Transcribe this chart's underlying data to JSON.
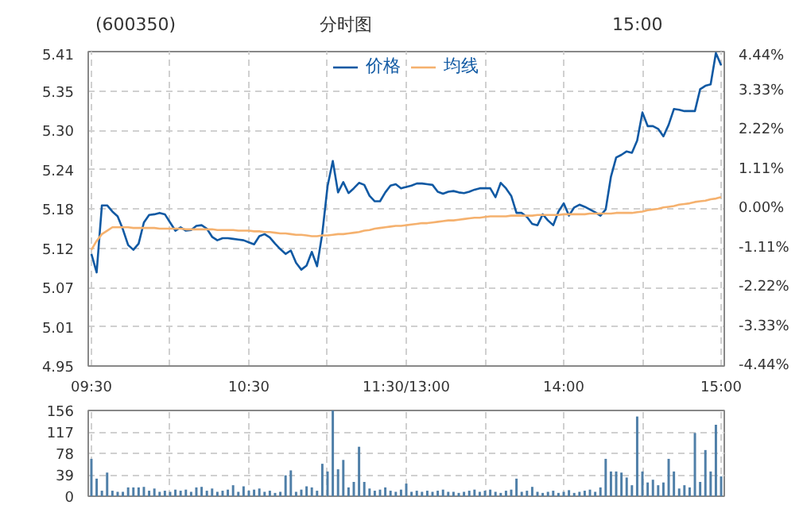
{
  "chart_data": [
    {
      "type": "line",
      "title": "(600350)",
      "subtitle": "分时图",
      "annotations": [
        "15:00"
      ],
      "categories": [
        "09:30",
        null,
        null,
        null,
        null,
        null,
        null,
        null,
        null,
        null,
        null,
        null,
        null,
        null,
        null,
        null,
        null,
        null,
        null,
        null,
        null,
        null,
        null,
        null,
        null,
        null,
        null,
        null,
        null,
        null,
        "10:30",
        null,
        null,
        null,
        null,
        null,
        null,
        null,
        null,
        null,
        null,
        null,
        null,
        null,
        null,
        null,
        null,
        null,
        null,
        null,
        null,
        null,
        null,
        null,
        null,
        null,
        null,
        null,
        null,
        null,
        "11:30/13:00",
        null,
        null,
        null,
        null,
        null,
        null,
        null,
        null,
        null,
        null,
        null,
        null,
        null,
        null,
        null,
        null,
        null,
        null,
        null,
        null,
        null,
        null,
        null,
        null,
        null,
        null,
        null,
        null,
        null,
        "14:00",
        null,
        null,
        null,
        null,
        null,
        null,
        null,
        null,
        null,
        null,
        null,
        null,
        null,
        null,
        null,
        null,
        null,
        null,
        null,
        null,
        null,
        null,
        null,
        null,
        null,
        null,
        null,
        null,
        null,
        "15:00"
      ],
      "series": [
        {
          "name": "价格",
          "color": "#1059a3",
          "values": [
            5.114,
            5.087,
            5.185,
            5.185,
            5.176,
            5.169,
            5.15,
            5.127,
            5.12,
            5.129,
            5.16,
            5.171,
            5.172,
            5.174,
            5.172,
            5.16,
            5.148,
            5.153,
            5.148,
            5.149,
            5.155,
            5.156,
            5.151,
            5.139,
            5.134,
            5.137,
            5.137,
            5.136,
            5.135,
            5.134,
            5.131,
            5.128,
            5.14,
            5.143,
            5.138,
            5.129,
            5.121,
            5.114,
            5.119,
            5.101,
            5.091,
            5.097,
            5.117,
            5.096,
            5.144,
            5.213,
            5.25,
            5.204,
            5.219,
            5.203,
            5.21,
            5.218,
            5.215,
            5.199,
            5.191,
            5.191,
            5.204,
            5.214,
            5.216,
            5.21,
            5.212,
            5.214,
            5.217,
            5.217,
            5.216,
            5.215,
            5.205,
            5.202,
            5.205,
            5.206,
            5.204,
            5.203,
            5.205,
            5.208,
            5.21,
            5.21,
            5.21,
            5.197,
            5.218,
            5.21,
            5.199,
            5.174,
            5.174,
            5.168,
            5.158,
            5.156,
            5.172,
            5.163,
            5.156,
            5.176,
            5.188,
            5.17,
            5.182,
            5.186,
            5.183,
            5.179,
            5.175,
            5.17,
            5.179,
            5.227,
            5.255,
            5.259,
            5.264,
            5.262,
            5.28,
            5.321,
            5.301,
            5.301,
            5.297,
            5.286,
            5.303,
            5.326,
            5.325,
            5.323,
            5.323,
            5.323,
            5.355,
            5.36,
            5.362,
            5.408,
            5.39
          ]
        },
        {
          "name": "均线",
          "color": "#f5b16e",
          "values": [
            5.12,
            5.133,
            5.143,
            5.148,
            5.153,
            5.153,
            5.153,
            5.153,
            5.152,
            5.152,
            5.152,
            5.152,
            5.152,
            5.151,
            5.151,
            5.151,
            5.151,
            5.151,
            5.15,
            5.15,
            5.15,
            5.15,
            5.15,
            5.15,
            5.149,
            5.149,
            5.149,
            5.149,
            5.148,
            5.148,
            5.148,
            5.147,
            5.147,
            5.146,
            5.146,
            5.145,
            5.144,
            5.144,
            5.143,
            5.142,
            5.142,
            5.141,
            5.14,
            5.14,
            5.141,
            5.141,
            5.142,
            5.143,
            5.143,
            5.144,
            5.145,
            5.146,
            5.148,
            5.149,
            5.151,
            5.152,
            5.153,
            5.154,
            5.155,
            5.155,
            5.156,
            5.157,
            5.158,
            5.159,
            5.159,
            5.16,
            5.161,
            5.162,
            5.163,
            5.163,
            5.164,
            5.165,
            5.166,
            5.167,
            5.167,
            5.168,
            5.169,
            5.169,
            5.169,
            5.169,
            5.17,
            5.17,
            5.17,
            5.17,
            5.17,
            5.171,
            5.171,
            5.171,
            5.171,
            5.171,
            5.172,
            5.172,
            5.172,
            5.172,
            5.172,
            5.173,
            5.173,
            5.173,
            5.173,
            5.173,
            5.174,
            5.174,
            5.174,
            5.174,
            5.175,
            5.176,
            5.178,
            5.179,
            5.18,
            5.182,
            5.183,
            5.184,
            5.186,
            5.187,
            5.188,
            5.19,
            5.191,
            5.192,
            5.194,
            5.195,
            5.197
          ]
        }
      ],
      "ylim": [
        4.95,
        5.41
      ],
      "yticks": [
        {
          "value": 4.95,
          "label": "4.95"
        },
        {
          "value": 5.0075,
          "label": "5.01"
        },
        {
          "value": 5.065,
          "label": "5.07"
        },
        {
          "value": 5.1225,
          "label": "5.12"
        },
        {
          "value": 5.18,
          "label": "5.18"
        },
        {
          "value": 5.2375,
          "label": "5.24"
        },
        {
          "value": 5.295,
          "label": "5.30"
        },
        {
          "value": 5.3525,
          "label": "5.35"
        },
        {
          "value": 5.41,
          "label": "5.41"
        }
      ],
      "y2lim": [
        -4.44,
        4.44
      ],
      "y2ticks": [
        {
          "value": -4.44,
          "label": "-4.44%"
        },
        {
          "value": -3.33,
          "label": "-3.33%"
        },
        {
          "value": -2.22,
          "label": "-2.22%"
        },
        {
          "value": -1.11,
          "label": "-1.11%"
        },
        {
          "value": 0,
          "label": "0.00%"
        },
        {
          "value": 1.11,
          "label": "1.11%"
        },
        {
          "value": 2.22,
          "label": "2.22%"
        },
        {
          "value": 3.33,
          "label": "3.33%"
        },
        {
          "value": 4.44,
          "label": "4.44%"
        }
      ],
      "grid": true,
      "legend": "top"
    },
    {
      "type": "bar",
      "categories": [
        null,
        null,
        null,
        null,
        null,
        null,
        null,
        null,
        null,
        null,
        null,
        null,
        null,
        null,
        null,
        null,
        null,
        null,
        null,
        null,
        null,
        null,
        null,
        null,
        null,
        null,
        null,
        null,
        null,
        null,
        null,
        null,
        null,
        null,
        null,
        null,
        null,
        null,
        null,
        null,
        null,
        null,
        null,
        null,
        null,
        null,
        null,
        null,
        null,
        null,
        null,
        null,
        null,
        null,
        null,
        null,
        null,
        null,
        null,
        null,
        null,
        null,
        null,
        null,
        null,
        null,
        null,
        null,
        null,
        null,
        null,
        null,
        null,
        null,
        null,
        null,
        null,
        null,
        null,
        null,
        null,
        null,
        null,
        null,
        null,
        null,
        null,
        null,
        null,
        null,
        null,
        null,
        null,
        null,
        null,
        null,
        null,
        null,
        null,
        null,
        null,
        null,
        null,
        null,
        null,
        null,
        null,
        null,
        null,
        null,
        null,
        null,
        null,
        null,
        null,
        null,
        null,
        null,
        null,
        null,
        null
      ],
      "tick_labels": "y",
      "values": [
        68,
        32,
        10,
        43,
        10,
        8,
        8,
        16,
        16,
        16,
        17,
        10,
        14,
        8,
        10,
        8,
        12,
        10,
        12,
        8,
        16,
        17,
        10,
        14,
        8,
        10,
        12,
        20,
        8,
        18,
        10,
        12,
        14,
        8,
        10,
        6,
        8,
        38,
        47,
        8,
        12,
        18,
        16,
        10,
        59,
        45,
        156,
        49,
        66,
        16,
        26,
        90,
        26,
        14,
        10,
        12,
        16,
        10,
        8,
        12,
        23,
        8,
        10,
        8,
        10,
        8,
        10,
        12,
        8,
        8,
        6,
        8,
        10,
        12,
        8,
        10,
        12,
        8,
        6,
        10,
        12,
        32,
        8,
        10,
        17,
        8,
        6,
        8,
        10,
        6,
        8,
        11,
        6,
        8,
        10,
        12,
        8,
        16,
        68,
        45,
        45,
        43,
        34,
        20,
        145,
        45,
        25,
        30,
        20,
        25,
        68,
        45,
        14,
        20,
        16,
        115,
        26,
        84,
        45,
        130,
        36
      ],
      "color": "#4f7fa8",
      "ylim": [
        0,
        156
      ],
      "yticks": [
        0,
        39,
        78,
        117,
        156
      ],
      "grid": true
    }
  ]
}
